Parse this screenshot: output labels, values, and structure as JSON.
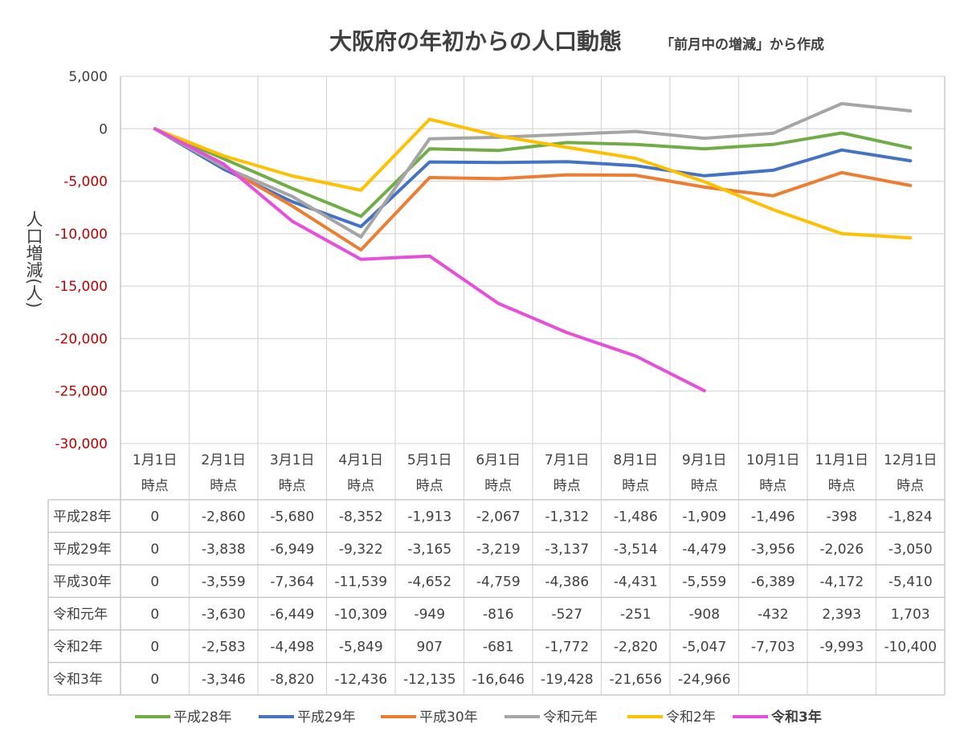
{
  "chart_data": {
    "type": "line",
    "title": "大阪府の年初からの人口動態",
    "subtitle": "「前月中の増減」から作成",
    "ylabel": "人口増減(人)",
    "ylim": [
      -30000,
      5000
    ],
    "yticks": [
      5000,
      0,
      -5000,
      -10000,
      -15000,
      -20000,
      -25000,
      -30000
    ],
    "ytick_labels": [
      "5,000",
      "0",
      "-5,000",
      "-10,000",
      "-15,000",
      "-20,000",
      "-25,000",
      "-30,000"
    ],
    "grid": true,
    "legend_position": "bottom",
    "categories": [
      [
        "1月1日",
        "時点"
      ],
      [
        "2月1日",
        "時点"
      ],
      [
        "3月1日",
        "時点"
      ],
      [
        "4月1日",
        "時点"
      ],
      [
        "5月1日",
        "時点"
      ],
      [
        "6月1日",
        "時点"
      ],
      [
        "7月1日",
        "時点"
      ],
      [
        "8月1日",
        "時点"
      ],
      [
        "9月1日",
        "時点"
      ],
      [
        "10月1日",
        "時点"
      ],
      [
        "11月1日",
        "時点"
      ],
      [
        "12月1日",
        "時点"
      ]
    ],
    "series": [
      {
        "name": "平成28年",
        "color": "#70ad47",
        "values": [
          0,
          -2860,
          -5680,
          -8352,
          -1913,
          -2067,
          -1312,
          -1486,
          -1909,
          -1496,
          -398,
          -1824
        ],
        "labels": [
          "0",
          "-2,860",
          "-5,680",
          "-8,352",
          "-1,913",
          "-2,067",
          "-1,312",
          "-1,486",
          "-1,909",
          "-1,496",
          "-398",
          "-1,824"
        ]
      },
      {
        "name": "平成29年",
        "color": "#4472c4",
        "values": [
          0,
          -3838,
          -6949,
          -9322,
          -3165,
          -3219,
          -3137,
          -3514,
          -4479,
          -3956,
          -2026,
          -3050
        ],
        "labels": [
          "0",
          "-3,838",
          "-6,949",
          "-9,322",
          "-3,165",
          "-3,219",
          "-3,137",
          "-3,514",
          "-4,479",
          "-3,956",
          "-2,026",
          "-3,050"
        ]
      },
      {
        "name": "平成30年",
        "color": "#ed7d31",
        "values": [
          0,
          -3559,
          -7364,
          -11539,
          -4652,
          -4759,
          -4386,
          -4431,
          -5559,
          -6389,
          -4172,
          -5410
        ],
        "labels": [
          "0",
          "-3,559",
          "-7,364",
          "-11,539",
          "-4,652",
          "-4,759",
          "-4,386",
          "-4,431",
          "-5,559",
          "-6,389",
          "-4,172",
          "-5,410"
        ]
      },
      {
        "name": "令和元年",
        "color": "#a5a5a5",
        "values": [
          0,
          -3630,
          -6449,
          -10309,
          -949,
          -816,
          -527,
          -251,
          -908,
          -432,
          2393,
          1703
        ],
        "labels": [
          "0",
          "-3,630",
          "-6,449",
          "-10,309",
          "-949",
          "-816",
          "-527",
          "-251",
          "-908",
          "-432",
          "2,393",
          "1,703"
        ]
      },
      {
        "name": "令和2年",
        "color": "#ffc000",
        "values": [
          0,
          -2583,
          -4498,
          -5849,
          907,
          -681,
          -1772,
          -2820,
          -5047,
          -7703,
          -9993,
          -10400
        ],
        "labels": [
          "0",
          "-2,583",
          "-4,498",
          "-5,849",
          "907",
          "-681",
          "-1,772",
          "-2,820",
          "-5,047",
          "-7,703",
          "-9,993",
          "-10,400"
        ]
      },
      {
        "name": "令和3年",
        "color": "#e64fdc",
        "bold": true,
        "values": [
          0,
          -3346,
          -8820,
          -12436,
          -12135,
          -16646,
          -19428,
          -21656,
          -24966,
          null,
          null,
          null
        ],
        "labels": [
          "0",
          "-3,346",
          "-8,820",
          "-12,436",
          "-12,135",
          "-16,646",
          "-19,428",
          "-21,656",
          "-24,966",
          "",
          "",
          ""
        ]
      }
    ],
    "colors": {
      "grid": "#d9d9d9",
      "table_border": "#bfbfbf",
      "positive_tick": "#404040",
      "negative_tick": "#c00000",
      "text": "#404040"
    }
  }
}
